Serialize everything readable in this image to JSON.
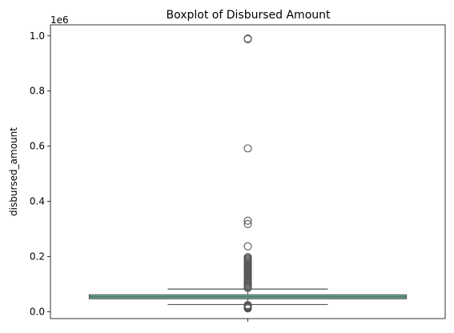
{
  "chart_data": {
    "type": "boxplot",
    "title": "Boxplot of Disbursed Amount",
    "xlabel": "",
    "ylabel": "disbursed_amount",
    "scale_note": "1e6",
    "ylim": [
      -0.025,
      1.04
    ],
    "yticks": [
      0.0,
      0.2,
      0.4,
      0.6,
      0.8,
      1.0
    ],
    "ytick_labels": [
      "0.0",
      "0.2",
      "0.4",
      "0.6",
      "0.8",
      "1.0"
    ],
    "grid": false,
    "box_color": "#66c2a5",
    "line_color": "#555555",
    "box": {
      "whisker_low": 0.026,
      "q1": 0.047,
      "median": 0.054,
      "q3": 0.061,
      "whisker_high": 0.082
    },
    "outliers_high": [
      0.99,
      0.988,
      0.592,
      0.33,
      0.318,
      0.237,
      0.198,
      0.194,
      0.19,
      0.186,
      0.182,
      0.178,
      0.174,
      0.17,
      0.166,
      0.162,
      0.158,
      0.154,
      0.15,
      0.146,
      0.142,
      0.138,
      0.134,
      0.13,
      0.126,
      0.122,
      0.118,
      0.114,
      0.11,
      0.106,
      0.102,
      0.098,
      0.094,
      0.09,
      0.086
    ],
    "outliers_low": [
      0.024,
      0.022,
      0.02,
      0.018,
      0.016,
      0.014,
      0.012
    ]
  }
}
